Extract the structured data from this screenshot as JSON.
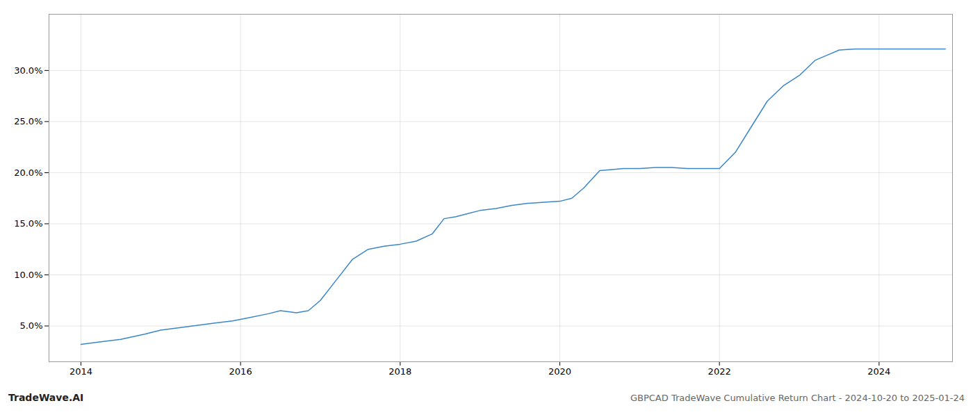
{
  "chart_data": {
    "type": "line",
    "title": "GBPCAD TradeWave Cumulative Return Chart - 2024-10-20 to 2025-01-24",
    "annotations": [
      "TradeWave.AI"
    ],
    "color": "#3a86c8",
    "x": [
      2014.0,
      2014.2,
      2014.5,
      2014.8,
      2015.0,
      2015.2,
      2015.5,
      2015.7,
      2015.9,
      2016.1,
      2016.35,
      2016.5,
      2016.7,
      2016.85,
      2017.0,
      2017.2,
      2017.4,
      2017.6,
      2017.8,
      2018.0,
      2018.2,
      2018.4,
      2018.55,
      2018.7,
      2018.85,
      2019.0,
      2019.2,
      2019.4,
      2019.6,
      2019.8,
      2020.0,
      2020.15,
      2020.3,
      2020.5,
      2020.65,
      2020.8,
      2021.0,
      2021.2,
      2021.4,
      2021.6,
      2022.0,
      2022.2,
      2022.4,
      2022.6,
      2022.8,
      2023.0,
      2023.2,
      2023.35,
      2023.5,
      2023.7,
      2023.85,
      2024.0,
      2024.5,
      2024.83
    ],
    "values": [
      3.2,
      3.4,
      3.7,
      4.2,
      4.6,
      4.8,
      5.1,
      5.3,
      5.5,
      5.8,
      6.2,
      6.5,
      6.3,
      6.5,
      7.5,
      9.5,
      11.5,
      12.5,
      12.8,
      13.0,
      13.3,
      14.0,
      15.5,
      15.7,
      16.0,
      16.3,
      16.5,
      16.8,
      17.0,
      17.1,
      17.2,
      17.5,
      18.5,
      20.2,
      20.3,
      20.4,
      20.4,
      20.5,
      20.5,
      20.4,
      20.4,
      22.0,
      24.5,
      27.0,
      28.5,
      29.5,
      31.0,
      31.5,
      32.0,
      32.1,
      32.1,
      32.1,
      32.1,
      32.1
    ],
    "xlim": [
      2013.6,
      2024.92
    ],
    "ylim": [
      1.5,
      35.5
    ],
    "xticks": [
      2014,
      2016,
      2018,
      2020,
      2022,
      2024
    ],
    "yticks": [
      {
        "value": 5.0,
        "label": "5.0%"
      },
      {
        "value": 10.0,
        "label": "10.0%"
      },
      {
        "value": 15.0,
        "label": "15.0%"
      },
      {
        "value": 20.0,
        "label": "20.0%"
      },
      {
        "value": 25.0,
        "label": "25.0%"
      },
      {
        "value": 30.0,
        "label": "30.0%"
      }
    ],
    "grid": true
  }
}
